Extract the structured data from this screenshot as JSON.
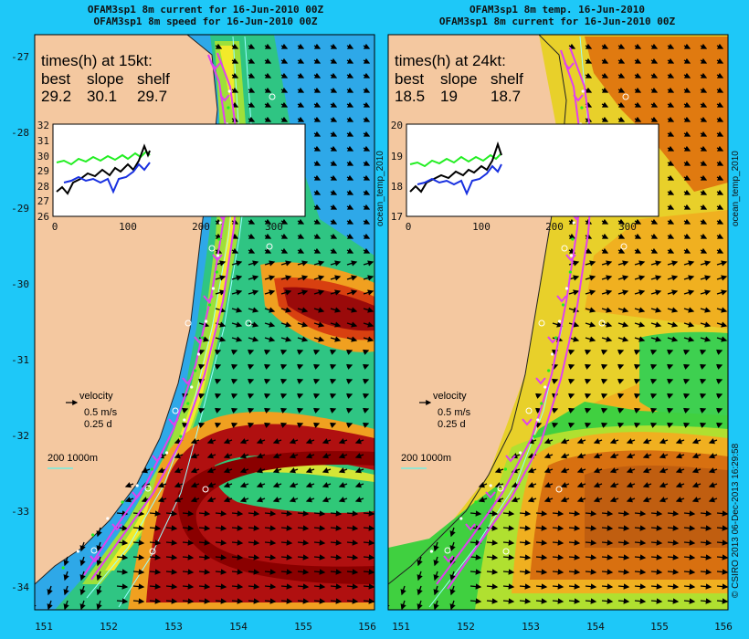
{
  "left_panel": {
    "title_line1": "OFAM3sp1 8m current for 16-Jun-2010 00Z",
    "title_line2": "OFAM3sp1 8m speed for 16-Jun-2010 00Z",
    "times_header": "times(h) at 15kt:",
    "col_best": "best",
    "col_slope": "slope",
    "col_shelf": "shelf",
    "val_best": "29.2",
    "val_slope": "30.1",
    "val_shelf": "29.7",
    "inset_y_ticks": [
      "32",
      "31",
      "30",
      "29",
      "28",
      "27",
      "26"
    ],
    "inset_x_ticks": [
      "0",
      "100",
      "200",
      "300"
    ],
    "side_label": "ocean_temp_2010"
  },
  "right_panel": {
    "title_line1": "OFAM3sp1 8m temp. 16-Jun-2010",
    "title_line2": "OFAM3sp1 8m current for 16-Jun-2010 00Z",
    "times_header": "times(h) at 24kt:",
    "col_best": "best",
    "col_slope": "slope",
    "col_shelf": "shelf",
    "val_best": "18.5",
    "val_slope": "19",
    "val_shelf": "18.7",
    "inset_y_ticks": [
      "20",
      "19",
      "18",
      "17"
    ],
    "inset_x_ticks": [
      "0",
      "100",
      "200",
      "300"
    ],
    "side_label": "ocean_temp_2010"
  },
  "legend": {
    "velocity": "velocity",
    "speed": "0.5 m/s",
    "duration": "0.25 d",
    "depth": "200  1000m"
  },
  "lat_ticks": [
    "-27",
    "-28",
    "-29",
    "-30",
    "-31",
    "-32",
    "-33",
    "-34"
  ],
  "lon_ticks": [
    "151",
    "152",
    "153",
    "154",
    "155",
    "156"
  ],
  "credit": "© CSIRO 2013   06-Dec-2013 16:29:58",
  "colors": {
    "background": "#1ec8f8",
    "land": "#f4c8a0",
    "route": "#e040f0",
    "track_green": "#22ee22"
  }
}
